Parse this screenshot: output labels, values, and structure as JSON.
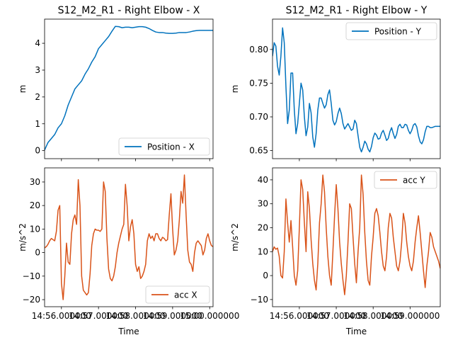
{
  "figure": {
    "background": "#ffffff"
  },
  "chart_data": [
    {
      "type": "line",
      "panel": "top-left",
      "title": "S12_M2_R1 - Right Elbow - X",
      "xlabel": "",
      "ylabel": "m",
      "ylim": [
        -0.3,
        4.9
      ],
      "yticks": [
        0,
        1,
        2,
        3,
        4
      ],
      "xlim": [
        0,
        1
      ],
      "xtick_positions": [
        0.1,
        0.32,
        0.54,
        0.76,
        0.98
      ],
      "xtick_labels": [
        "",
        "",
        "",
        "",
        ""
      ],
      "grid": false,
      "legend_position": "lower-right",
      "series": [
        {
          "name": "Position - X",
          "color": "#0072bd",
          "x": [
            0.0,
            0.02,
            0.04,
            0.06,
            0.08,
            0.1,
            0.12,
            0.14,
            0.16,
            0.18,
            0.2,
            0.22,
            0.24,
            0.26,
            0.28,
            0.3,
            0.32,
            0.34,
            0.36,
            0.38,
            0.4,
            0.42,
            0.44,
            0.46,
            0.48,
            0.5,
            0.52,
            0.54,
            0.56,
            0.58,
            0.6,
            0.62,
            0.64,
            0.66,
            0.68,
            0.7,
            0.72,
            0.74,
            0.76,
            0.78,
            0.8,
            0.82,
            0.84,
            0.86,
            0.88,
            0.9,
            0.92,
            0.94,
            0.96,
            0.98,
            1.0
          ],
          "y": [
            0.02,
            0.3,
            0.45,
            0.6,
            0.85,
            1.0,
            1.3,
            1.7,
            2.0,
            2.3,
            2.45,
            2.6,
            2.85,
            3.05,
            3.3,
            3.5,
            3.8,
            3.95,
            4.1,
            4.25,
            4.45,
            4.63,
            4.62,
            4.58,
            4.6,
            4.6,
            4.58,
            4.6,
            4.62,
            4.62,
            4.6,
            4.55,
            4.48,
            4.42,
            4.4,
            4.4,
            4.38,
            4.37,
            4.37,
            4.38,
            4.4,
            4.4,
            4.4,
            4.42,
            4.45,
            4.47,
            4.48,
            4.48,
            4.48,
            4.48,
            4.48
          ]
        }
      ]
    },
    {
      "type": "line",
      "panel": "top-right",
      "title": "S12_M2_R1 - Right Elbow - Y",
      "xlabel": "",
      "ylabel": "m",
      "ylim": [
        0.638,
        0.845
      ],
      "yticks": [
        0.65,
        0.7,
        0.75,
        0.8
      ],
      "xlim": [
        0,
        1
      ],
      "xtick_positions": [
        0.16,
        0.38,
        0.6,
        0.82
      ],
      "xtick_labels": [
        "",
        "",
        "",
        ""
      ],
      "grid": false,
      "legend_position": "upper-right",
      "series": [
        {
          "name": "Position - Y",
          "color": "#0072bd",
          "x": [
            0.0,
            0.01,
            0.02,
            0.03,
            0.04,
            0.05,
            0.06,
            0.07,
            0.08,
            0.09,
            0.1,
            0.11,
            0.12,
            0.13,
            0.14,
            0.15,
            0.16,
            0.17,
            0.18,
            0.19,
            0.2,
            0.21,
            0.22,
            0.23,
            0.24,
            0.25,
            0.26,
            0.27,
            0.28,
            0.29,
            0.3,
            0.31,
            0.32,
            0.33,
            0.34,
            0.35,
            0.36,
            0.37,
            0.38,
            0.39,
            0.4,
            0.41,
            0.42,
            0.43,
            0.44,
            0.45,
            0.46,
            0.47,
            0.48,
            0.49,
            0.5,
            0.51,
            0.52,
            0.53,
            0.54,
            0.55,
            0.56,
            0.57,
            0.58,
            0.59,
            0.6,
            0.61,
            0.62,
            0.63,
            0.64,
            0.65,
            0.66,
            0.67,
            0.68,
            0.69,
            0.7,
            0.71,
            0.72,
            0.73,
            0.74,
            0.75,
            0.76,
            0.77,
            0.78,
            0.79,
            0.8,
            0.81,
            0.82,
            0.83,
            0.84,
            0.85,
            0.86,
            0.87,
            0.88,
            0.89,
            0.9,
            0.91,
            0.92,
            0.93,
            0.94,
            0.95,
            0.96,
            0.97,
            0.98,
            0.99,
            1.0
          ],
          "y": [
            0.79,
            0.81,
            0.805,
            0.775,
            0.762,
            0.79,
            0.832,
            0.81,
            0.745,
            0.69,
            0.71,
            0.765,
            0.765,
            0.71,
            0.675,
            0.69,
            0.72,
            0.75,
            0.74,
            0.7,
            0.672,
            0.685,
            0.72,
            0.706,
            0.67,
            0.655,
            0.675,
            0.71,
            0.728,
            0.728,
            0.72,
            0.713,
            0.718,
            0.733,
            0.74,
            0.72,
            0.695,
            0.688,
            0.693,
            0.705,
            0.713,
            0.705,
            0.69,
            0.682,
            0.686,
            0.69,
            0.685,
            0.68,
            0.682,
            0.695,
            0.69,
            0.672,
            0.655,
            0.648,
            0.655,
            0.664,
            0.66,
            0.652,
            0.648,
            0.656,
            0.669,
            0.676,
            0.673,
            0.667,
            0.668,
            0.676,
            0.68,
            0.673,
            0.665,
            0.668,
            0.678,
            0.684,
            0.675,
            0.668,
            0.674,
            0.686,
            0.689,
            0.684,
            0.684,
            0.689,
            0.688,
            0.68,
            0.675,
            0.68,
            0.688,
            0.69,
            0.685,
            0.672,
            0.663,
            0.66,
            0.666,
            0.678,
            0.686,
            0.686,
            0.684,
            0.684,
            0.685,
            0.686,
            0.686,
            0.686,
            0.686
          ]
        }
      ]
    },
    {
      "type": "line",
      "panel": "bottom-left",
      "title": "",
      "xlabel": "Time",
      "ylabel": "m/s^2",
      "ylim": [
        -23,
        36
      ],
      "yticks": [
        -20,
        -10,
        0,
        10,
        20,
        30
      ],
      "xlim": [
        0,
        1
      ],
      "xtick_positions": [
        0.1,
        0.32,
        0.54,
        0.76,
        0.98
      ],
      "xtick_labels": [
        "14:56.000000",
        "14:57.000000",
        "14:58.000000",
        "14:59.000000",
        "15:00.000000"
      ],
      "grid": false,
      "legend_position": "lower-right",
      "series": [
        {
          "name": "acc X",
          "color": "#d95319",
          "x": [
            0.0,
            0.01,
            0.02,
            0.03,
            0.04,
            0.05,
            0.06,
            0.07,
            0.08,
            0.09,
            0.1,
            0.11,
            0.12,
            0.13,
            0.14,
            0.15,
            0.16,
            0.17,
            0.18,
            0.19,
            0.2,
            0.21,
            0.22,
            0.23,
            0.24,
            0.25,
            0.26,
            0.27,
            0.28,
            0.29,
            0.3,
            0.31,
            0.32,
            0.33,
            0.34,
            0.35,
            0.36,
            0.37,
            0.38,
            0.39,
            0.4,
            0.41,
            0.42,
            0.43,
            0.44,
            0.45,
            0.46,
            0.47,
            0.48,
            0.49,
            0.5,
            0.51,
            0.52,
            0.53,
            0.54,
            0.55,
            0.56,
            0.57,
            0.58,
            0.59,
            0.6,
            0.61,
            0.62,
            0.63,
            0.64,
            0.65,
            0.66,
            0.67,
            0.68,
            0.69,
            0.7,
            0.71,
            0.72,
            0.73,
            0.74,
            0.75,
            0.76,
            0.77,
            0.78,
            0.79,
            0.8,
            0.81,
            0.82,
            0.83,
            0.84,
            0.85,
            0.86,
            0.87,
            0.88,
            0.89,
            0.9,
            0.91,
            0.92,
            0.93,
            0.94,
            0.95,
            0.96,
            0.97,
            0.98,
            0.99,
            1.0
          ],
          "y": [
            2,
            2.5,
            3.5,
            5,
            6,
            5.5,
            5,
            9,
            18,
            20,
            -13,
            -20,
            -10,
            4,
            -4,
            -5,
            8,
            14,
            16,
            12,
            31,
            20,
            -10,
            -16,
            -17,
            -18,
            -17,
            -9,
            3,
            8,
            10,
            9.5,
            9.5,
            9,
            10,
            30,
            26,
            6,
            -7,
            -11,
            -12,
            -10,
            -6,
            0,
            4,
            7,
            10,
            12,
            29,
            20,
            5,
            11,
            14,
            8,
            -5,
            -8,
            -6,
            -11,
            -10,
            -8,
            -5,
            5,
            8,
            6,
            7,
            5,
            8,
            8,
            6,
            5,
            6.5,
            6,
            5,
            5.5,
            16,
            25,
            10,
            -1,
            1,
            5,
            14,
            26,
            21,
            33,
            16,
            1,
            -4,
            -5,
            -8,
            0,
            4,
            5,
            4,
            3,
            -1,
            1,
            6,
            8,
            5,
            3,
            2.5
          ]
        }
      ]
    },
    {
      "type": "line",
      "panel": "bottom-right",
      "title": "",
      "xlabel": "Time",
      "ylabel": "m/s^2",
      "ylim": [
        -13,
        45
      ],
      "yticks": [
        -10,
        0,
        10,
        20,
        30,
        40
      ],
      "xlim": [
        0,
        1
      ],
      "xtick_positions": [
        0.16,
        0.38,
        0.6,
        0.82
      ],
      "xtick_labels": [
        "14:56.000000",
        "14:57.000000",
        "14:58.000000",
        "14:59.000000"
      ],
      "grid": false,
      "legend_position": "upper-right",
      "series": [
        {
          "name": "acc Y",
          "color": "#d95319",
          "x": [
            0.0,
            0.01,
            0.02,
            0.03,
            0.04,
            0.05,
            0.06,
            0.07,
            0.08,
            0.09,
            0.1,
            0.11,
            0.12,
            0.13,
            0.14,
            0.15,
            0.16,
            0.17,
            0.18,
            0.19,
            0.2,
            0.21,
            0.22,
            0.23,
            0.24,
            0.25,
            0.26,
            0.27,
            0.28,
            0.29,
            0.3,
            0.31,
            0.32,
            0.33,
            0.34,
            0.35,
            0.36,
            0.37,
            0.38,
            0.39,
            0.4,
            0.41,
            0.42,
            0.43,
            0.44,
            0.45,
            0.46,
            0.47,
            0.48,
            0.49,
            0.5,
            0.51,
            0.52,
            0.53,
            0.54,
            0.55,
            0.56,
            0.57,
            0.58,
            0.59,
            0.6,
            0.61,
            0.62,
            0.63,
            0.64,
            0.65,
            0.66,
            0.67,
            0.68,
            0.69,
            0.7,
            0.71,
            0.72,
            0.73,
            0.74,
            0.75,
            0.76,
            0.77,
            0.78,
            0.79,
            0.8,
            0.81,
            0.82,
            0.83,
            0.84,
            0.85,
            0.86,
            0.87,
            0.88,
            0.89,
            0.9,
            0.91,
            0.92,
            0.93,
            0.94,
            0.95,
            0.96,
            0.97,
            0.98,
            0.99,
            1.0
          ],
          "y": [
            10,
            12,
            11,
            11.5,
            8,
            0,
            -1,
            10,
            32,
            22,
            14,
            23,
            12,
            0,
            -4,
            2,
            20,
            40,
            36,
            22,
            10,
            35,
            28,
            15,
            5,
            -2,
            -6,
            5,
            22,
            30,
            42,
            35,
            20,
            8,
            0,
            -4,
            10,
            25,
            38,
            28,
            14,
            5,
            -2,
            -8,
            0,
            14,
            30,
            28,
            16,
            5,
            -3,
            10,
            20,
            42,
            34,
            18,
            6,
            -2,
            -4,
            8,
            16,
            26,
            28,
            25,
            18,
            10,
            4,
            2,
            8,
            20,
            26,
            24,
            16,
            10,
            4,
            2,
            6,
            14,
            26,
            22,
            14,
            8,
            4,
            2,
            6,
            14,
            20,
            25,
            18,
            10,
            2,
            -5,
            4,
            10,
            18,
            16,
            12,
            10,
            8,
            6,
            3
          ]
        }
      ]
    }
  ]
}
